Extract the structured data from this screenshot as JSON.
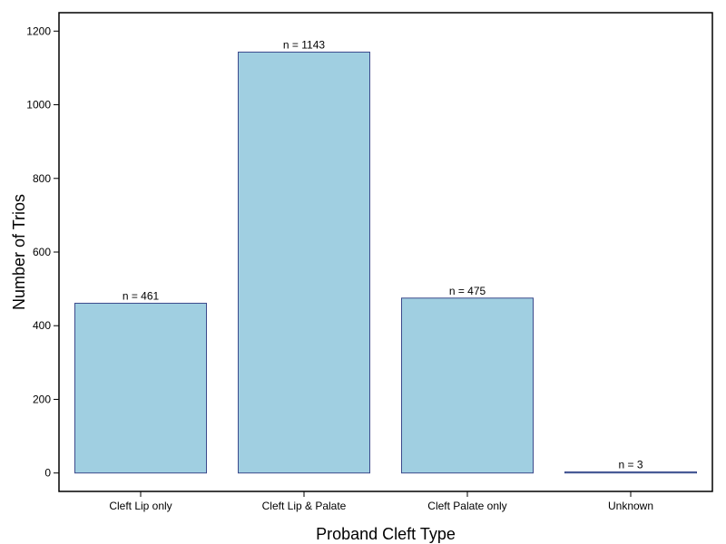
{
  "chart_data": {
    "type": "bar",
    "title": "",
    "xlabel": "Proband Cleft Type",
    "ylabel": "Number of Trios",
    "categories": [
      "Cleft Lip only",
      "Cleft Lip & Palate",
      "Cleft Palate only",
      "Unknown"
    ],
    "values": [
      461,
      1143,
      475,
      3
    ],
    "data_labels": [
      "n =  461",
      "n =  1143",
      "n =  475",
      "n =  3"
    ],
    "y_ticks": [
      0,
      200,
      400,
      600,
      800,
      1000,
      1200
    ],
    "y_tick_labels": [
      "0",
      "200",
      "400",
      "600",
      "800",
      "1000",
      "1200"
    ],
    "ylim": [
      -50,
      1250
    ],
    "grid": false,
    "bar_fill": "#a0cfe1",
    "bar_stroke": "#3c4a8c"
  }
}
